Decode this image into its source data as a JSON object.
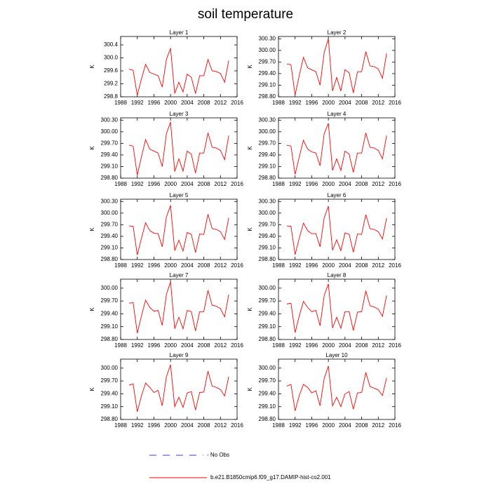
{
  "title": "soil temperature",
  "legend": {
    "label": "- No Obs",
    "color": "#3b3bc4"
  },
  "chart_data": [
    {
      "type": "line",
      "title": "Layer 1",
      "ylabel": "K",
      "x": [
        1990,
        1991,
        1992,
        1993,
        1994,
        1995,
        1996,
        1997,
        1998,
        1999,
        2000,
        2001,
        2002,
        2003,
        2004,
        2005,
        2006,
        2007,
        2008,
        2009,
        2010,
        2011,
        2012,
        2013,
        2014
      ],
      "series": [
        {
          "name": "b.e21.B1850cmip6.f09_g17.DAMIP-hist-co2.001",
          "color": "#ff0000",
          "values": [
            299.65,
            299.62,
            298.85,
            299.35,
            299.8,
            299.55,
            299.5,
            299.45,
            299.1,
            299.95,
            300.3,
            298.9,
            299.25,
            298.95,
            299.5,
            299.4,
            298.9,
            299.45,
            299.45,
            299.95,
            299.6,
            299.58,
            299.52,
            299.25,
            299.92
          ]
        }
      ],
      "xlim": [
        1988,
        2016
      ],
      "xticks": [
        1988,
        1992,
        1996,
        2000,
        2004,
        2008,
        2012,
        2016
      ],
      "ylim": [
        298.8,
        300.66
      ],
      "yticks": [
        298.8,
        299.2,
        299.6,
        {
          "value": 300,
          "label": "300.0"
        },
        300.4
      ]
    },
    {
      "type": "line",
      "title": "Layer 2",
      "ylabel": "K",
      "x": [
        1990,
        1991,
        1992,
        1993,
        1994,
        1995,
        1996,
        1997,
        1998,
        1999,
        2000,
        2001,
        2002,
        2003,
        2004,
        2005,
        2006,
        2007,
        2008,
        2009,
        2010,
        2011,
        2012,
        2013,
        2014
      ],
      "series": [
        {
          "name": "b.e21.B1850cmip6.f09_g17.DAMIP-hist-co2.001",
          "color": "#ff0000",
          "values": [
            299.65,
            299.63,
            298.85,
            299.35,
            299.82,
            299.55,
            299.5,
            299.45,
            299.1,
            299.95,
            300.3,
            298.95,
            299.3,
            298.95,
            299.5,
            299.42,
            298.9,
            299.45,
            299.45,
            299.97,
            299.6,
            299.58,
            299.52,
            299.28,
            299.92
          ]
        }
      ],
      "xlim": [
        1988,
        2016
      ],
      "xticks": [
        1988,
        1992,
        1996,
        2000,
        2004,
        2008,
        2012,
        2016
      ],
      "ylim": [
        298.8,
        300.36
      ],
      "yticks": [
        {
          "value": 298.8,
          "label": "298.80"
        },
        {
          "value": 299.1,
          "label": "299.10"
        },
        {
          "value": 299.4,
          "label": "299.40"
        },
        {
          "value": 299.7,
          "label": "299.70"
        },
        {
          "value": 300,
          "label": "300.00"
        },
        {
          "value": 300.3,
          "label": "300.30"
        }
      ]
    },
    {
      "type": "line",
      "title": "Layer 3",
      "ylabel": "K",
      "x": [
        1990,
        1991,
        1992,
        1993,
        1994,
        1995,
        1996,
        1997,
        1998,
        1999,
        2000,
        2001,
        2002,
        2003,
        2004,
        2005,
        2006,
        2007,
        2008,
        2009,
        2010,
        2011,
        2012,
        2013,
        2014
      ],
      "series": [
        {
          "name": "b.e21.B1850cmip6.f09_g17.DAMIP-hist-co2.001",
          "color": "#ff0000",
          "values": [
            299.65,
            299.63,
            298.88,
            299.35,
            299.8,
            299.55,
            299.5,
            299.45,
            299.1,
            299.95,
            300.25,
            298.97,
            299.3,
            298.98,
            299.5,
            299.42,
            298.93,
            299.45,
            299.45,
            299.97,
            299.6,
            299.58,
            299.52,
            299.28,
            299.9
          ]
        }
      ],
      "xlim": [
        1988,
        2016
      ],
      "xticks": [
        1988,
        1992,
        1996,
        2000,
        2004,
        2008,
        2012,
        2016
      ],
      "ylim": [
        298.8,
        300.36
      ],
      "yticks": [
        {
          "value": 298.8,
          "label": "298.80"
        },
        {
          "value": 299.1,
          "label": "299.10"
        },
        {
          "value": 299.4,
          "label": "299.40"
        },
        {
          "value": 299.7,
          "label": "299.70"
        },
        {
          "value": 300,
          "label": "300.00"
        },
        {
          "value": 300.3,
          "label": "300.30"
        }
      ]
    },
    {
      "type": "line",
      "title": "Layer 4",
      "ylabel": "K",
      "x": [
        1990,
        1991,
        1992,
        1993,
        1994,
        1995,
        1996,
        1997,
        1998,
        1999,
        2000,
        2001,
        2002,
        2003,
        2004,
        2005,
        2006,
        2007,
        2008,
        2009,
        2010,
        2011,
        2012,
        2013,
        2014
      ],
      "series": [
        {
          "name": "b.e21.B1850cmip6.f09_g17.DAMIP-hist-co2.001",
          "color": "#ff0000",
          "values": [
            299.65,
            299.63,
            298.9,
            299.35,
            299.78,
            299.55,
            299.48,
            299.45,
            299.12,
            299.95,
            300.22,
            299,
            299.3,
            299,
            299.5,
            299.42,
            298.95,
            299.45,
            299.45,
            299.97,
            299.6,
            299.58,
            299.52,
            299.3,
            299.9
          ]
        }
      ],
      "xlim": [
        1988,
        2016
      ],
      "xticks": [
        1988,
        1992,
        1996,
        2000,
        2004,
        2008,
        2012,
        2016
      ],
      "ylim": [
        298.8,
        300.36
      ],
      "yticks": [
        {
          "value": 298.8,
          "label": "298.80"
        },
        {
          "value": 299.1,
          "label": "299.10"
        },
        {
          "value": 299.4,
          "label": "299.40"
        },
        {
          "value": 299.7,
          "label": "299.70"
        },
        {
          "value": 300,
          "label": "300.00"
        },
        {
          "value": 300.3,
          "label": "300.30"
        }
      ]
    },
    {
      "type": "line",
      "title": "Layer 5",
      "ylabel": "K",
      "x": [
        1990,
        1991,
        1992,
        1993,
        1994,
        1995,
        1996,
        1997,
        1998,
        1999,
        2000,
        2001,
        2002,
        2003,
        2004,
        2005,
        2006,
        2007,
        2008,
        2009,
        2010,
        2011,
        2012,
        2013,
        2014
      ],
      "series": [
        {
          "name": "b.e21.B1850cmip6.f09_g17.DAMIP-hist-co2.001",
          "color": "#ff0000",
          "values": [
            299.67,
            299.66,
            298.92,
            299.35,
            299.75,
            299.55,
            299.48,
            299.47,
            299.13,
            299.9,
            300.2,
            299.03,
            299.3,
            299.02,
            299.5,
            299.45,
            298.98,
            299.46,
            299.45,
            299.97,
            299.6,
            299.58,
            299.52,
            299.32,
            299.88
          ]
        }
      ],
      "xlim": [
        1988,
        2016
      ],
      "xticks": [
        1988,
        1992,
        1996,
        2000,
        2004,
        2008,
        2012,
        2016
      ],
      "ylim": [
        298.8,
        300.36
      ],
      "yticks": [
        {
          "value": 298.8,
          "label": "298.80"
        },
        {
          "value": 299.1,
          "label": "299.10"
        },
        {
          "value": 299.4,
          "label": "299.40"
        },
        {
          "value": 299.7,
          "label": "299.70"
        },
        {
          "value": 300,
          "label": "300.00"
        },
        {
          "value": 300.3,
          "label": "300.30"
        }
      ]
    },
    {
      "type": "line",
      "title": "Layer 6",
      "ylabel": "K",
      "x": [
        1990,
        1991,
        1992,
        1993,
        1994,
        1995,
        1996,
        1997,
        1998,
        1999,
        2000,
        2001,
        2002,
        2003,
        2004,
        2005,
        2006,
        2007,
        2008,
        2009,
        2010,
        2011,
        2012,
        2013,
        2014
      ],
      "series": [
        {
          "name": "b.e21.B1850cmip6.f09_g17.DAMIP-hist-co2.001",
          "color": "#ff0000",
          "values": [
            299.67,
            299.66,
            298.93,
            299.35,
            299.74,
            299.55,
            299.47,
            299.47,
            299.13,
            299.88,
            300.18,
            299.04,
            299.31,
            299.03,
            299.49,
            299.45,
            298.99,
            299.46,
            299.45,
            299.96,
            299.6,
            299.58,
            299.52,
            299.33,
            299.87
          ]
        }
      ],
      "xlim": [
        1988,
        2016
      ],
      "xticks": [
        1988,
        1992,
        1996,
        2000,
        2004,
        2008,
        2012,
        2016
      ],
      "ylim": [
        298.8,
        300.36
      ],
      "yticks": [
        {
          "value": 298.8,
          "label": "298.80"
        },
        {
          "value": 299.1,
          "label": "299.10"
        },
        {
          "value": 299.4,
          "label": "299.40"
        },
        {
          "value": 299.7,
          "label": "299.70"
        },
        {
          "value": 300,
          "label": "300.00"
        },
        {
          "value": 300.3,
          "label": "300.30"
        }
      ]
    },
    {
      "type": "line",
      "title": "Layer 7",
      "ylabel": "K",
      "x": [
        1990,
        1991,
        1992,
        1993,
        1994,
        1995,
        1996,
        1997,
        1998,
        1999,
        2000,
        2001,
        2002,
        2003,
        2004,
        2005,
        2006,
        2007,
        2008,
        2009,
        2010,
        2011,
        2012,
        2013,
        2014
      ],
      "series": [
        {
          "name": "b.e21.B1850cmip6.f09_g17.DAMIP-hist-co2.001",
          "color": "#ff0000",
          "values": [
            299.65,
            299.66,
            298.95,
            299.35,
            299.72,
            299.55,
            299.46,
            299.48,
            299.13,
            299.85,
            300.15,
            299.05,
            299.32,
            299.05,
            299.48,
            299.45,
            299,
            299.45,
            299.45,
            299.95,
            299.6,
            299.58,
            299.52,
            299.33,
            299.85
          ]
        }
      ],
      "xlim": [
        1988,
        2016
      ],
      "xticks": [
        1988,
        1992,
        1996,
        2000,
        2004,
        2008,
        2012,
        2016
      ],
      "ylim": [
        298.8,
        300.21
      ],
      "yticks": [
        {
          "value": 298.8,
          "label": "298.80"
        },
        {
          "value": 299.1,
          "label": "299.10"
        },
        {
          "value": 299.4,
          "label": "299.40"
        },
        {
          "value": 299.7,
          "label": "299.70"
        },
        {
          "value": 300,
          "label": "300.00"
        }
      ]
    },
    {
      "type": "line",
      "title": "Layer 8",
      "ylabel": "K",
      "x": [
        1990,
        1991,
        1992,
        1993,
        1994,
        1995,
        1996,
        1997,
        1998,
        1999,
        2000,
        2001,
        2002,
        2003,
        2004,
        2005,
        2006,
        2007,
        2008,
        2009,
        2010,
        2011,
        2012,
        2013,
        2014
      ],
      "series": [
        {
          "name": "b.e21.B1850cmip6.f09_g17.DAMIP-hist-co2.001",
          "color": "#ff0000",
          "values": [
            299.63,
            299.65,
            298.96,
            299.35,
            299.69,
            299.55,
            299.45,
            299.48,
            299.12,
            299.83,
            300.1,
            299.07,
            299.32,
            299.06,
            299.45,
            299.45,
            299.01,
            299.44,
            299.45,
            299.94,
            299.59,
            299.56,
            299.51,
            299.34,
            299.83
          ]
        }
      ],
      "xlim": [
        1988,
        2016
      ],
      "xticks": [
        1988,
        1992,
        1996,
        2000,
        2004,
        2008,
        2012,
        2016
      ],
      "ylim": [
        298.8,
        300.21
      ],
      "yticks": [
        {
          "value": 298.8,
          "label": "298.80"
        },
        {
          "value": 299.1,
          "label": "299.10"
        },
        {
          "value": 299.4,
          "label": "299.40"
        },
        {
          "value": 299.7,
          "label": "299.70"
        },
        {
          "value": 300,
          "label": "300.00"
        }
      ]
    },
    {
      "type": "line",
      "title": "Layer 9",
      "ylabel": "K",
      "x": [
        1990,
        1991,
        1992,
        1993,
        1994,
        1995,
        1996,
        1997,
        1998,
        1999,
        2000,
        2001,
        2002,
        2003,
        2004,
        2005,
        2006,
        2007,
        2008,
        2009,
        2010,
        2011,
        2012,
        2013,
        2014
      ],
      "series": [
        {
          "name": "b.e21.B1850cmip6.f09_g17.DAMIP-hist-co2.001",
          "color": "#ff0000",
          "values": [
            299.6,
            299.63,
            298.98,
            299.35,
            299.65,
            299.55,
            299.43,
            299.48,
            299.12,
            299.8,
            300.08,
            299.1,
            299.32,
            299.08,
            299.42,
            299.45,
            299.02,
            299.43,
            299.44,
            299.93,
            299.58,
            299.55,
            299.5,
            299.35,
            299.8
          ]
        }
      ],
      "xlim": [
        1988,
        2016
      ],
      "xticks": [
        1988,
        1992,
        1996,
        2000,
        2004,
        2008,
        2012,
        2016
      ],
      "ylim": [
        298.8,
        300.21
      ],
      "yticks": [
        {
          "value": 298.8,
          "label": "298.80"
        },
        {
          "value": 299.1,
          "label": "299.10"
        },
        {
          "value": 299.4,
          "label": "299.40"
        },
        {
          "value": 299.7,
          "label": "299.70"
        },
        {
          "value": 300,
          "label": "300.00"
        }
      ]
    },
    {
      "type": "line",
      "title": "Layer 10",
      "ylabel": "K",
      "x": [
        1990,
        1991,
        1992,
        1993,
        1994,
        1995,
        1996,
        1997,
        1998,
        1999,
        2000,
        2001,
        2002,
        2003,
        2004,
        2005,
        2006,
        2007,
        2008,
        2009,
        2010,
        2011,
        2012,
        2013,
        2014
      ],
      "series": [
        {
          "name": "b.e21.B1850cmip6.f09_g17.DAMIP-hist-co2.001",
          "color": "#ff0000",
          "values": [
            299.58,
            299.62,
            299,
            299.36,
            299.62,
            299.55,
            299.42,
            299.47,
            299.12,
            299.76,
            300.05,
            299.12,
            299.32,
            299.1,
            299.4,
            299.45,
            299.04,
            299.42,
            299.43,
            299.9,
            299.57,
            299.53,
            299.49,
            299.36,
            299.77
          ]
        }
      ],
      "xlim": [
        1988,
        2016
      ],
      "xticks": [
        1988,
        1992,
        1996,
        2000,
        2004,
        2008,
        2012,
        2016
      ],
      "ylim": [
        298.8,
        300.21
      ],
      "yticks": [
        {
          "value": 298.8,
          "label": "298.80"
        },
        {
          "value": 299.1,
          "label": "299.10"
        },
        {
          "value": 299.4,
          "label": "299.40"
        },
        {
          "value": 299.7,
          "label": "299.70"
        },
        {
          "value": 300,
          "label": "300.00"
        }
      ]
    }
  ]
}
